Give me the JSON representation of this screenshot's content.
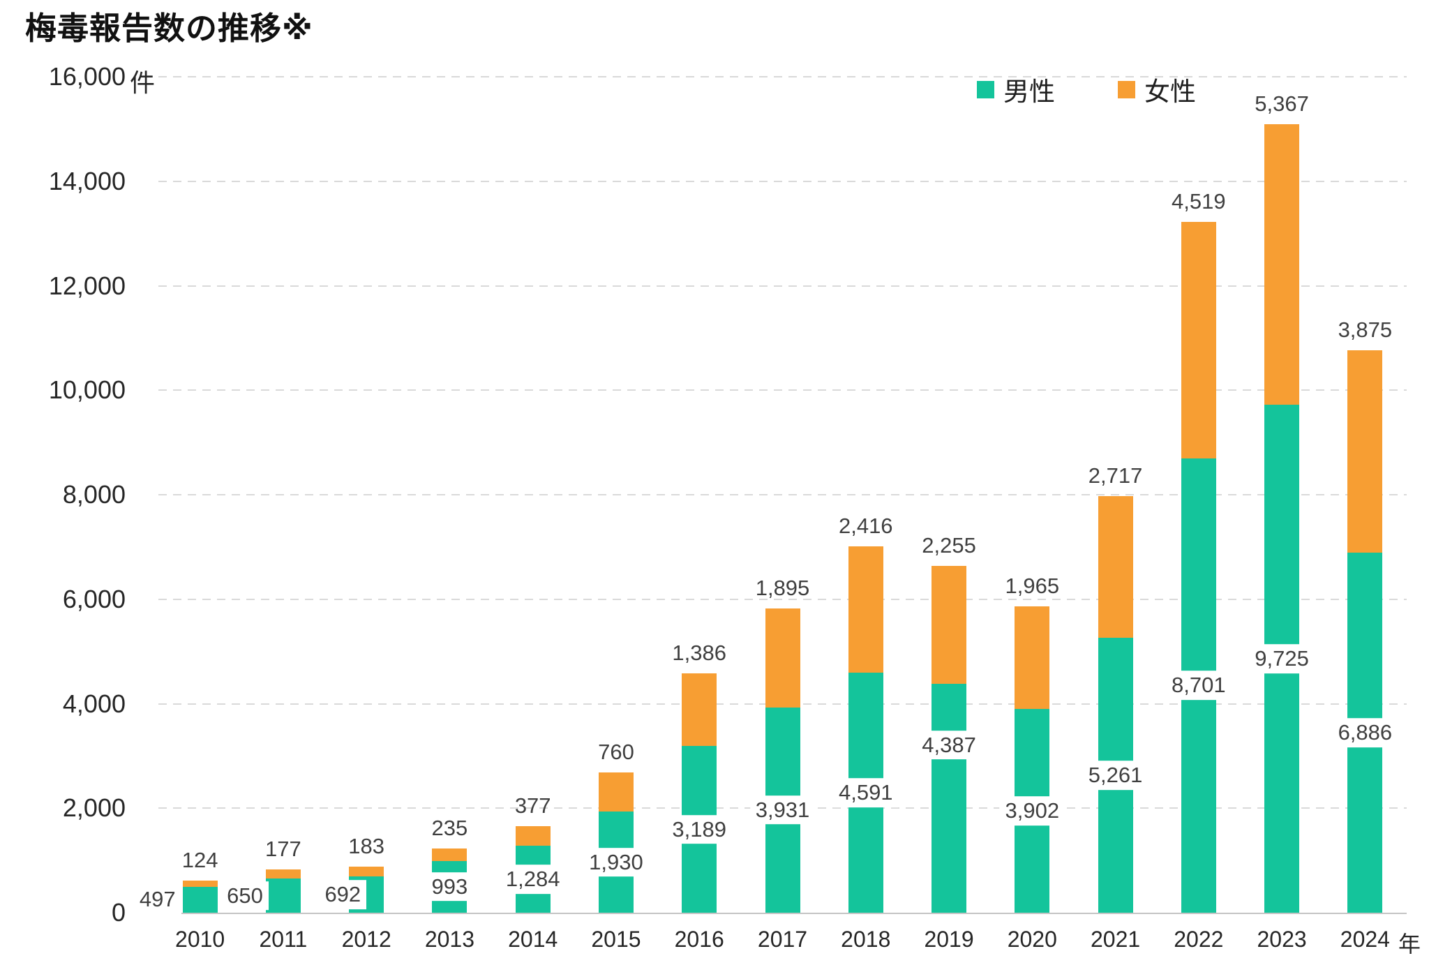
{
  "title": "梅毒報告数の推移※",
  "chart_data": {
    "type": "bar",
    "stacked": true,
    "title": "梅毒報告数の推移※",
    "categories": [
      "2010",
      "2011",
      "2012",
      "2013",
      "2014",
      "2015",
      "2016",
      "2017",
      "2018",
      "2019",
      "2020",
      "2021",
      "2022",
      "2023",
      "2024"
    ],
    "x_suffix": "年",
    "series": [
      {
        "name": "男性",
        "color": "#14C49B",
        "values": [
          497,
          650,
          692,
          993,
          1284,
          1930,
          3189,
          3931,
          4591,
          4387,
          3902,
          5261,
          8701,
          9725,
          6886
        ],
        "labels": [
          "497",
          "650",
          "692",
          "993",
          "1,284",
          "1,930",
          "3,189",
          "3,931",
          "4,591",
          "4,387",
          "3,902",
          "5,261",
          "8,701",
          "9,725",
          "6,886"
        ],
        "label_position": "inside-center-white-background"
      },
      {
        "name": "女性",
        "color": "#F79E33",
        "values": [
          124,
          177,
          183,
          235,
          377,
          760,
          1386,
          1895,
          2416,
          2255,
          1965,
          2717,
          4519,
          5367,
          3875
        ],
        "labels": [
          "124",
          "177",
          "183",
          "235",
          "377",
          "760",
          "1,386",
          "1,895",
          "2,416",
          "2,255",
          "1,965",
          "2,717",
          "4,519",
          "5,367",
          "3,875"
        ],
        "label_position": "above-bar"
      }
    ],
    "ylim": [
      0,
      16000
    ],
    "y_tick_step": 2000,
    "y_ticks": [
      "0",
      "2,000",
      "4,000",
      "6,000",
      "8,000",
      "10,000",
      "12,000",
      "14,000",
      "16,000"
    ],
    "y_unit": "件",
    "grid": "horizontal-dashed",
    "legend_position": "top-right"
  }
}
